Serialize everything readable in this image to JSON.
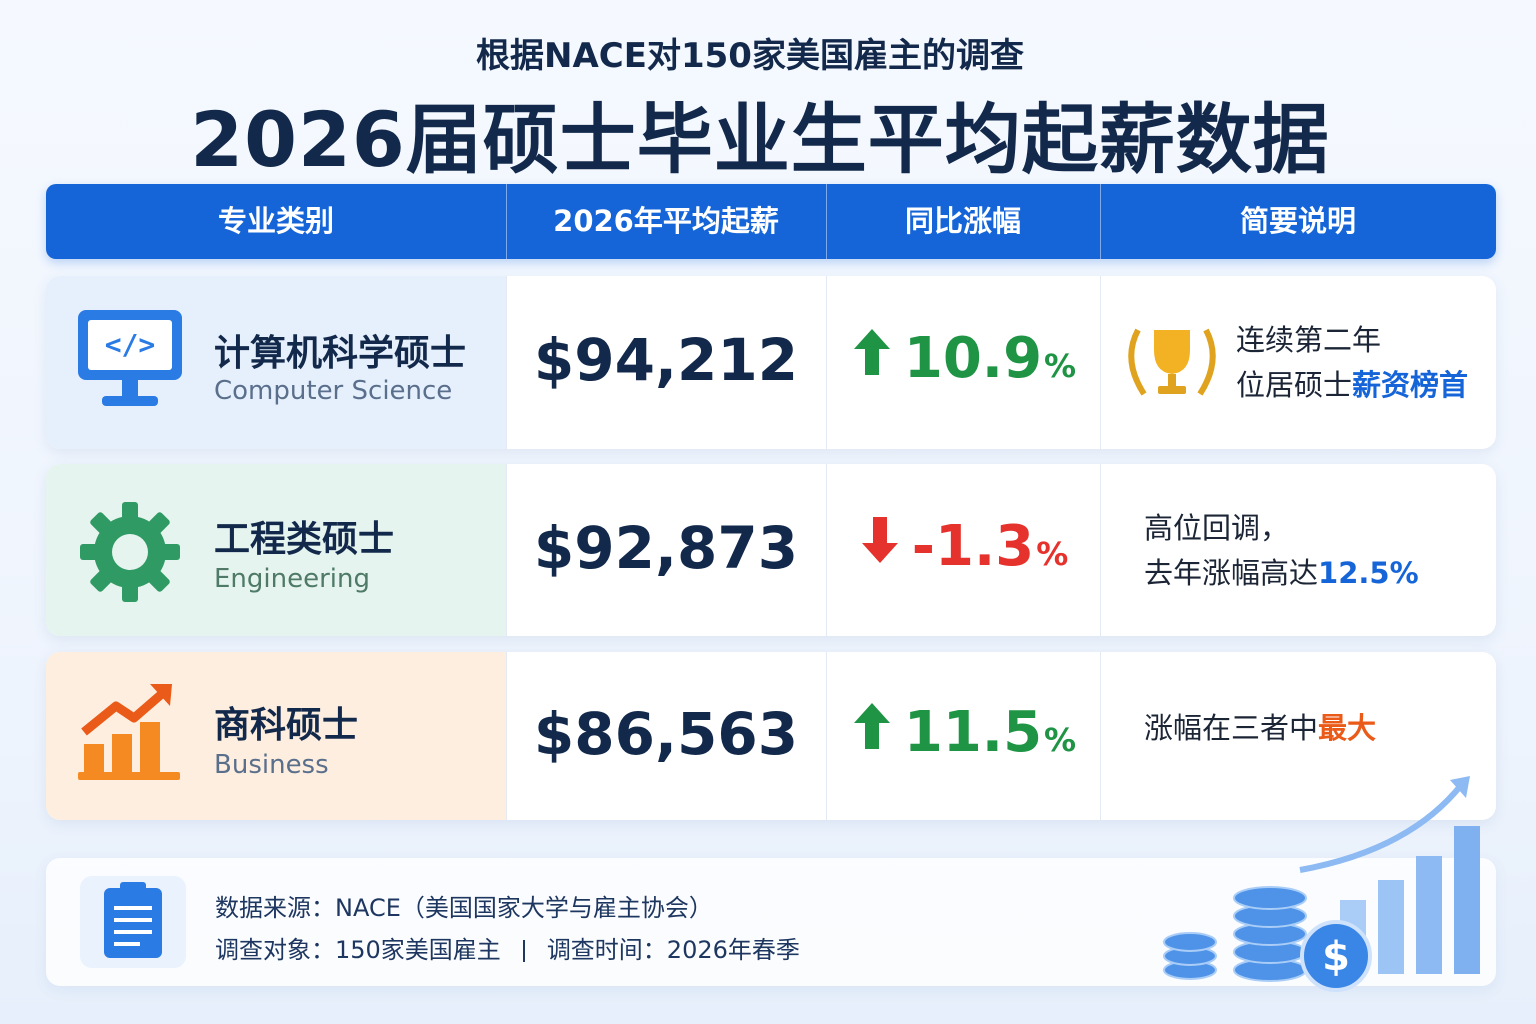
{
  "header": {
    "subtitle": "根据NACE对150家美国雇主的调查",
    "title": "2026届硕士毕业生平均起薪数据"
  },
  "table": {
    "headers": [
      "专业类别",
      "2026年平均起薪",
      "同比涨幅",
      "简要说明"
    ],
    "rows": [
      {
        "name": "计算机科学硕士",
        "name_en": "Computer Science",
        "salary": "$94,212",
        "change": "10.9",
        "change_unit": "%",
        "note": [
          [
            "连续第二年"
          ],
          [
            "位居硕士",
            "薪资榜首"
          ]
        ]
      },
      {
        "name": "工程类硕士",
        "name_en": "Engineering",
        "salary": "$92,873",
        "change": "-1.3",
        "change_unit": "%",
        "note": [
          [
            "高位回调，"
          ],
          [
            "去年涨幅高达",
            "12.5%"
          ]
        ]
      },
      {
        "name": "商科硕士",
        "name_en": "Business",
        "salary": "$86,563",
        "change": "11.5",
        "change_unit": "%",
        "note": [
          [
            "涨幅在三者中",
            "最大"
          ]
        ]
      }
    ]
  },
  "footer": {
    "source": "数据来源：NACE（美国国家大学与雇主协会）",
    "target": "调查对象：150家美国雇主",
    "time": "调查时间：2026年春季"
  }
}
